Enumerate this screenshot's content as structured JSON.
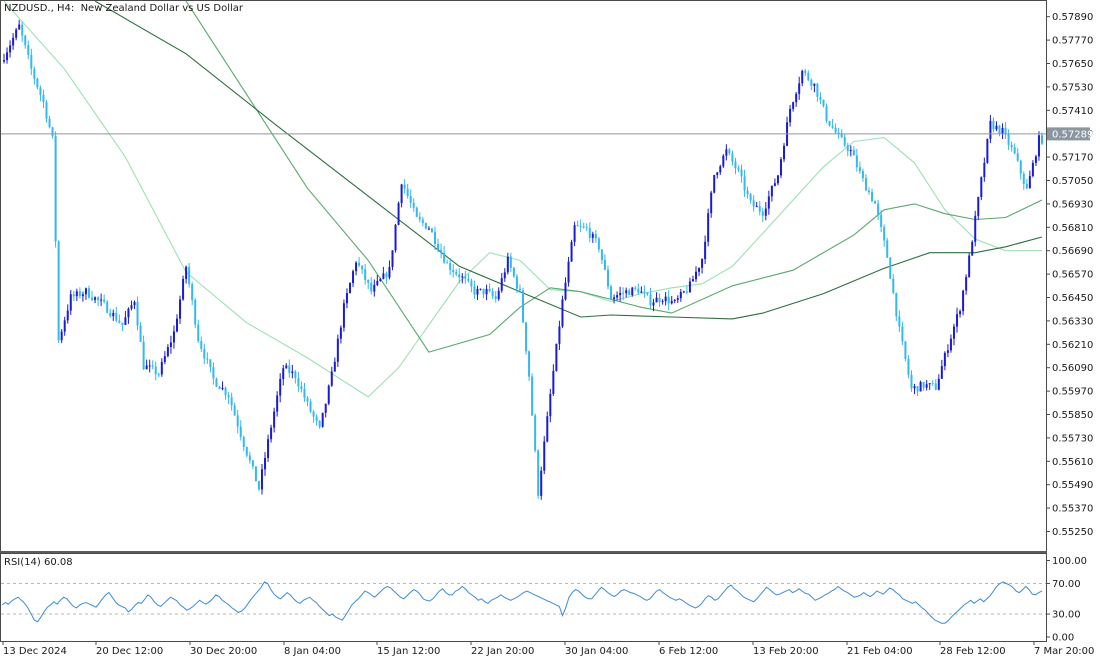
{
  "header": {
    "symbol": "NZDUSD.",
    "timeframe": "H4",
    "description": "New Zealand Dollar vs US Dollar"
  },
  "current_price": "0.57289",
  "rsi": {
    "label": "RSI(14) 60.08",
    "period": 14,
    "value": 60.08
  },
  "colors": {
    "bull_candle": "#1a1ad4",
    "bear_candle": "#33b8f0",
    "ma_fast": "#9ee0b4",
    "ma_mid": "#5aa86e",
    "ma_slow": "#2e6e40",
    "rsi_line": "#3d8bd9",
    "price_line": "#8c96a0",
    "price_label_bg": "#8c96a0"
  },
  "chart_data": [
    {
      "type": "candlestick",
      "title": "NZDUSD., H4:  New Zealand Dollar vs US Dollar",
      "x_labels": [
        "13 Dec 2024",
        "20 Dec 12:00",
        "30 Dec 20:00",
        "8 Jan 04:00",
        "15 Jan 12:00",
        "22 Jan 20:00",
        "30 Jan 04:00",
        "6 Feb 12:00",
        "13 Feb 20:00",
        "21 Feb 04:00",
        "28 Feb 12:00",
        "7 Mar 20:00"
      ],
      "y_tick_labels": [
        "0.57890",
        "0.57770",
        "0.57650",
        "0.57530",
        "0.57410",
        "0.57290",
        "0.57170",
        "0.57050",
        "0.56930",
        "0.56810",
        "0.56690",
        "0.56570",
        "0.56450",
        "0.56330",
        "0.56210",
        "0.56090",
        "0.55970",
        "0.55850",
        "0.55730",
        "0.55610",
        "0.55490",
        "0.55370",
        "0.55250"
      ],
      "ylim": [
        0.5515,
        0.5799
      ],
      "price_path": [
        [
          0,
          0.5766
        ],
        [
          6,
          0.5784
        ],
        [
          10,
          0.5762
        ],
        [
          14,
          0.5745
        ],
        [
          17,
          0.5726
        ],
        [
          19,
          0.5623
        ],
        [
          23,
          0.5645
        ],
        [
          28,
          0.5648
        ],
        [
          34,
          0.5641
        ],
        [
          40,
          0.5631
        ],
        [
          44,
          0.5644
        ],
        [
          47,
          0.561
        ],
        [
          52,
          0.5606
        ],
        [
          57,
          0.5627
        ],
        [
          61,
          0.5661
        ],
        [
          65,
          0.5624
        ],
        [
          70,
          0.5603
        ],
        [
          75,
          0.5595
        ],
        [
          80,
          0.557
        ],
        [
          85,
          0.5547
        ],
        [
          89,
          0.5579
        ],
        [
          93,
          0.5609
        ],
        [
          97,
          0.5605
        ],
        [
          101,
          0.559
        ],
        [
          105,
          0.5577
        ],
        [
          109,
          0.5605
        ],
        [
          113,
          0.564
        ],
        [
          117,
          0.5664
        ],
        [
          122,
          0.5648
        ],
        [
          128,
          0.5659
        ],
        [
          132,
          0.5705
        ],
        [
          137,
          0.5685
        ],
        [
          141,
          0.5681
        ],
        [
          147,
          0.5662
        ],
        [
          152,
          0.5655
        ],
        [
          156,
          0.5648
        ],
        [
          160,
          0.5648
        ],
        [
          163,
          0.5644
        ],
        [
          167,
          0.5664
        ],
        [
          171,
          0.5647
        ],
        [
          174,
          0.5605
        ],
        [
          177,
          0.5545
        ],
        [
          181,
          0.5595
        ],
        [
          185,
          0.5643
        ],
        [
          189,
          0.5681
        ],
        [
          193,
          0.568
        ],
        [
          197,
          0.5671
        ],
        [
          201,
          0.5645
        ],
        [
          206,
          0.5648
        ],
        [
          210,
          0.5649
        ],
        [
          214,
          0.5643
        ],
        [
          218,
          0.5645
        ],
        [
          222,
          0.5642
        ],
        [
          227,
          0.5651
        ],
        [
          231,
          0.5665
        ],
        [
          235,
          0.5708
        ],
        [
          239,
          0.572
        ],
        [
          243,
          0.5709
        ],
        [
          247,
          0.5693
        ],
        [
          251,
          0.5689
        ],
        [
          256,
          0.5708
        ],
        [
          260,
          0.5742
        ],
        [
          264,
          0.5761
        ],
        [
          268,
          0.5754
        ],
        [
          272,
          0.5737
        ],
        [
          276,
          0.5727
        ],
        [
          280,
          0.572
        ],
        [
          284,
          0.5705
        ],
        [
          288,
          0.5693
        ],
        [
          292,
          0.5666
        ],
        [
          296,
          0.5628
        ],
        [
          300,
          0.5598
        ],
        [
          304,
          0.56
        ],
        [
          308,
          0.5599
        ],
        [
          312,
          0.562
        ],
        [
          316,
          0.564
        ],
        [
          319,
          0.5665
        ],
        [
          323,
          0.5705
        ],
        [
          326,
          0.5734
        ],
        [
          330,
          0.573
        ],
        [
          334,
          0.5718
        ],
        [
          338,
          0.57
        ],
        [
          342,
          0.5726
        ]
      ],
      "moving_averages": [
        {
          "name": "fast",
          "points": [
            [
              0,
              0.5797
            ],
            [
              20,
              0.5762
            ],
            [
              40,
              0.5717
            ],
            [
              60,
              0.5658
            ],
            [
              80,
              0.5632
            ],
            [
              100,
              0.5614
            ],
            [
              120,
              0.5594
            ],
            [
              130,
              0.5609
            ],
            [
              150,
              0.5653
            ],
            [
              160,
              0.5668
            ],
            [
              170,
              0.5664
            ],
            [
              180,
              0.5649
            ],
            [
              190,
              0.5648
            ],
            [
              200,
              0.5643
            ],
            [
              210,
              0.5647
            ],
            [
              220,
              0.565
            ],
            [
              230,
              0.5652
            ],
            [
              240,
              0.5661
            ],
            [
              250,
              0.5678
            ],
            [
              260,
              0.5695
            ],
            [
              270,
              0.5712
            ],
            [
              280,
              0.5725
            ],
            [
              290,
              0.5727
            ],
            [
              300,
              0.5714
            ],
            [
              310,
              0.569
            ],
            [
              320,
              0.5675
            ],
            [
              330,
              0.5669
            ],
            [
              342,
              0.5669
            ]
          ]
        },
        {
          "name": "mid",
          "points": [
            [
              60,
              0.5797
            ],
            [
              80,
              0.5749
            ],
            [
              100,
              0.5701
            ],
            [
              120,
              0.5664
            ],
            [
              140,
              0.5617
            ],
            [
              160,
              0.5626
            ],
            [
              170,
              0.564
            ],
            [
              180,
              0.565
            ],
            [
              190,
              0.5648
            ],
            [
              200,
              0.5644
            ],
            [
              210,
              0.564
            ],
            [
              220,
              0.5637
            ],
            [
              240,
              0.5651
            ],
            [
              260,
              0.5659
            ],
            [
              280,
              0.5677
            ],
            [
              290,
              0.569
            ],
            [
              300,
              0.5693
            ],
            [
              310,
              0.5688
            ],
            [
              320,
              0.5685
            ],
            [
              330,
              0.5686
            ],
            [
              342,
              0.5695
            ]
          ]
        },
        {
          "name": "slow",
          "points": [
            [
              30,
              0.5797
            ],
            [
              60,
              0.577
            ],
            [
              90,
              0.5733
            ],
            [
              120,
              0.5697
            ],
            [
              150,
              0.5661
            ],
            [
              170,
              0.5648
            ],
            [
              190,
              0.5635
            ],
            [
              200,
              0.5636
            ],
            [
              220,
              0.5635
            ],
            [
              240,
              0.5634
            ],
            [
              250,
              0.5637
            ],
            [
              270,
              0.5647
            ],
            [
              290,
              0.566
            ],
            [
              305,
              0.5668
            ],
            [
              320,
              0.5668
            ],
            [
              330,
              0.5671
            ],
            [
              342,
              0.5676
            ]
          ]
        }
      ]
    },
    {
      "type": "line",
      "title": "RSI(14) 60.08",
      "y_tick_labels": [
        "100.00",
        "70.00",
        "30.00",
        "0.00"
      ],
      "ylim": [
        0,
        100
      ],
      "levels": [
        70,
        30
      ],
      "values": [
        42,
        45,
        43,
        47,
        50,
        52,
        48,
        44,
        38,
        30,
        22,
        20,
        26,
        33,
        39,
        42,
        46,
        43,
        48,
        52,
        50,
        45,
        40,
        38,
        42,
        44,
        45,
        43,
        41,
        39,
        44,
        50,
        55,
        58,
        52,
        46,
        42,
        40,
        38,
        33,
        36,
        41,
        45,
        44,
        49,
        55,
        52,
        46,
        42,
        40,
        44,
        48,
        52,
        50,
        47,
        42,
        39,
        35,
        37,
        40,
        44,
        48,
        45,
        43,
        46,
        50,
        55,
        53,
        48,
        45,
        42,
        38,
        35,
        32,
        34,
        38,
        44,
        50,
        55,
        60,
        65,
        72,
        70,
        62,
        56,
        52,
        50,
        54,
        58,
        55,
        50,
        46,
        44,
        48,
        50,
        52,
        48,
        45,
        40,
        36,
        32,
        28,
        30,
        26,
        24,
        22,
        28,
        35,
        42,
        46,
        50,
        55,
        60,
        58,
        55,
        52,
        56,
        60,
        64,
        66,
        64,
        60,
        56,
        52,
        50,
        54,
        58,
        62,
        60,
        56,
        50,
        48,
        47,
        50,
        55,
        60,
        63,
        58,
        55,
        55,
        60,
        62,
        66,
        63,
        58,
        55,
        52,
        48,
        50,
        46,
        44,
        48,
        50,
        52,
        55,
        52,
        50,
        48,
        50,
        52,
        55,
        58,
        60,
        58,
        56,
        54,
        52,
        50,
        48,
        46,
        44,
        42,
        40,
        28,
        38,
        52,
        58,
        62,
        60,
        56,
        52,
        50,
        50,
        55,
        60,
        65,
        62,
        58,
        55,
        53,
        56,
        60,
        62,
        60,
        58,
        57,
        55,
        53,
        50,
        48,
        50,
        55,
        60,
        62,
        58,
        55,
        52,
        50,
        48,
        50,
        48,
        45,
        42,
        40,
        38,
        40,
        44,
        50,
        54,
        52,
        48,
        50,
        55,
        60,
        65,
        68,
        63,
        60,
        56,
        52,
        50,
        48,
        46,
        50,
        55,
        60,
        65,
        62,
        58,
        55,
        56,
        58,
        60,
        62,
        58,
        60,
        63,
        60,
        57,
        56,
        52,
        48,
        50,
        52,
        55,
        57,
        60,
        62,
        66,
        63,
        60,
        58,
        55,
        52,
        53,
        55,
        58,
        55,
        53,
        56,
        60,
        58,
        56,
        60,
        64,
        62,
        58,
        55,
        50,
        48,
        46,
        44,
        46,
        42,
        38,
        35,
        30,
        26,
        22,
        20,
        18,
        18,
        21,
        26,
        30,
        34,
        38,
        42,
        45,
        48,
        44,
        47,
        50,
        46,
        50,
        54,
        60,
        66,
        70,
        72,
        70,
        68,
        65,
        60,
        58,
        62,
        66,
        62,
        56,
        55,
        58,
        60
      ]
    }
  ]
}
